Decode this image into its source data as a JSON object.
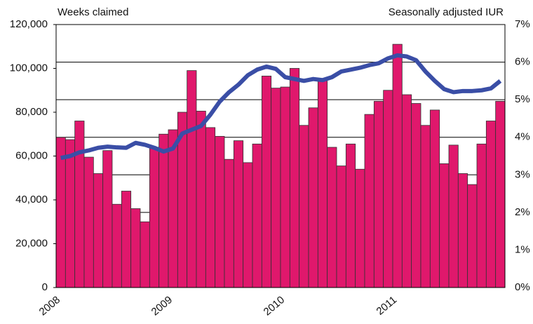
{
  "chart_data": {
    "type": "bar_line",
    "y_label": "Weeks claimed",
    "y2_label": "Seasonally adjusted IUR",
    "categories": [
      "2008",
      null,
      null,
      null,
      null,
      null,
      null,
      null,
      null,
      null,
      null,
      null,
      "2009",
      null,
      null,
      null,
      null,
      null,
      null,
      null,
      null,
      null,
      null,
      null,
      "2010",
      null,
      null,
      null,
      null,
      null,
      null,
      null,
      null,
      null,
      null,
      null,
      "2011",
      null,
      null,
      null,
      null,
      null,
      null,
      null,
      null,
      null,
      null,
      null
    ],
    "series": [
      {
        "name": "Weeks claimed",
        "color": "#e0186c",
        "kind": "bar",
        "values": [
          68500,
          67500,
          76000,
          59500,
          52000,
          62500,
          38000,
          44000,
          36000,
          30000,
          64000,
          70000,
          72000,
          80000,
          99000,
          80500,
          73000,
          69000,
          58500,
          67000,
          57000,
          65500,
          96500,
          91000,
          91500,
          100000,
          74000,
          82000,
          95000,
          64000,
          55500,
          65500,
          54000,
          79000,
          85000,
          90000,
          111000,
          88000,
          84000,
          74000,
          81000,
          56500,
          65000,
          52000,
          47000,
          65500,
          76000,
          85000
        ]
      },
      {
        "name": "Seasonally adjusted IUR",
        "color": "#3a4ea6",
        "kind": "line",
        "axis": "y2",
        "values": [
          3.45,
          3.5,
          3.6,
          3.65,
          3.72,
          3.75,
          3.73,
          3.72,
          3.85,
          3.8,
          3.72,
          3.62,
          3.7,
          4.1,
          4.2,
          4.3,
          4.6,
          4.95,
          5.2,
          5.4,
          5.65,
          5.8,
          5.88,
          5.82,
          5.6,
          5.55,
          5.5,
          5.55,
          5.52,
          5.6,
          5.75,
          5.8,
          5.85,
          5.92,
          5.97,
          6.1,
          6.18,
          6.15,
          6.05,
          5.75,
          5.5,
          5.28,
          5.2,
          5.23,
          5.23,
          5.25,
          5.3,
          5.5
        ]
      }
    ],
    "ylim": [
      0,
      120000
    ],
    "yticks": [
      0,
      {
        "value": 20000,
        "label": "20,000"
      },
      {
        "value": 40000,
        "label": "40,000"
      },
      {
        "value": 60000,
        "label": "60,000"
      },
      {
        "value": 80000,
        "label": "80,000"
      },
      {
        "value": 100000,
        "label": "100,000"
      },
      {
        "value": 120000,
        "label": "120,000"
      }
    ],
    "y2lim": [
      0,
      7
    ],
    "y2ticks": [
      {
        "value": 0,
        "label": "0%"
      },
      {
        "value": 1,
        "label": "1%"
      },
      {
        "value": 2,
        "label": "2%"
      },
      {
        "value": 3,
        "label": "3%"
      },
      {
        "value": 4,
        "label": "4%"
      },
      {
        "value": 5,
        "label": "5%"
      },
      {
        "value": 6,
        "label": "6%"
      },
      {
        "value": 7,
        "label": "7%"
      }
    ],
    "grid": "y2"
  }
}
